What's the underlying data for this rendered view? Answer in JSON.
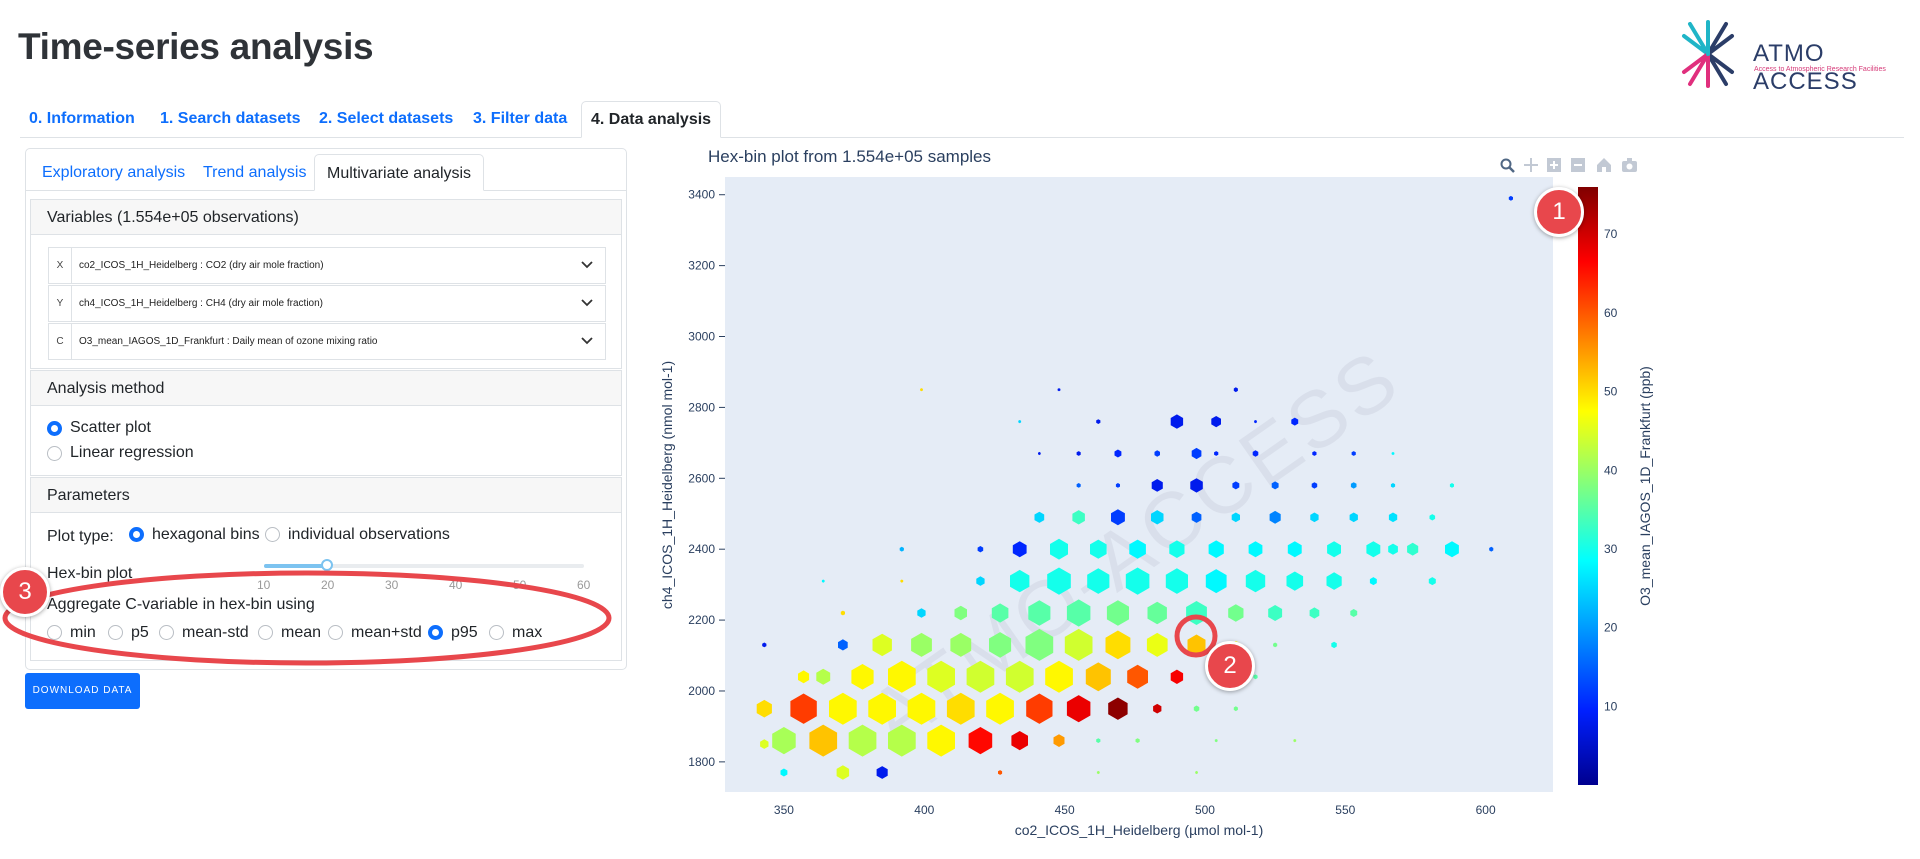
{
  "page": {
    "title": "Time-series analysis"
  },
  "logo": {
    "name": "ATMO ACCESS",
    "tagline": "Access to Atmospheric Research Facilities"
  },
  "main_tabs": [
    {
      "label": "0. Information"
    },
    {
      "label": "1. Search datasets"
    },
    {
      "label": "2. Select datasets"
    },
    {
      "label": "3. Filter data"
    },
    {
      "label": "4. Data analysis",
      "active": true
    }
  ],
  "sub_tabs": [
    {
      "label": "Exploratory analysis"
    },
    {
      "label": "Trend analysis"
    },
    {
      "label": "Multivariate analysis",
      "active": true
    }
  ],
  "variables": {
    "header": "Variables (1.554e+05 observations)",
    "x": {
      "tag": "X",
      "value": "co2_ICOS_1H_Heidelberg : CO2 (dry air mole fraction)"
    },
    "y": {
      "tag": "Y",
      "value": "ch4_ICOS_1H_Heidelberg : CH4 (dry air mole fraction)"
    },
    "c": {
      "tag": "C",
      "value": "O3_mean_IAGOS_1D_Frankfurt : Daily mean of ozone mixing ratio"
    }
  },
  "analysis_method": {
    "header": "Analysis method",
    "options": [
      "Scatter plot",
      "Linear regression"
    ],
    "selected": "Scatter plot"
  },
  "parameters": {
    "header": "Parameters",
    "plot_type_label": "Plot type:",
    "plot_type_options": [
      "hexagonal bins",
      "individual observations"
    ],
    "plot_type_selected": "hexagonal bins",
    "hexbin_label": "Hex-bin plot",
    "slider_ticks": [
      "10",
      "20",
      "30",
      "40",
      "50",
      "60"
    ],
    "slider_value": 20,
    "aggregate_label": "Aggregate C-variable in hex-bin using",
    "aggregate_options": [
      "min",
      "p5",
      "mean-std",
      "mean",
      "mean+std",
      "p95",
      "max"
    ],
    "aggregate_selected": "p95"
  },
  "download_button": "DOWNLOAD DATA",
  "annotations": [
    "1",
    "2",
    "3"
  ],
  "chart_data": {
    "type": "hexbin",
    "title": "Hex-bin plot from 1.554e+05 samples",
    "xlabel": "co2_ICOS_1H_Heidelberg (µmol mol-1)",
    "ylabel": "ch4_ICOS_1H_Heidelberg (nmol mol-1)",
    "colorbar_label": "O3_mean_IAGOS_1D_Frankfurt (ppb)",
    "xlim": [
      329,
      624
    ],
    "ylim": [
      1715,
      3450
    ],
    "x_ticks": [
      350,
      400,
      450,
      500,
      550,
      600
    ],
    "y_ticks": [
      1800,
      2000,
      2200,
      2400,
      2600,
      2800,
      3000,
      3200,
      3400
    ],
    "clim": [
      0,
      76
    ],
    "colorbar_ticks": [
      10,
      20,
      30,
      40,
      50,
      60,
      70
    ],
    "colorscale": "jet",
    "watermark": "ATMO-ACCESS",
    "grid": false,
    "background": "#e5ecf6",
    "hexbin_size": 20,
    "bins": [
      {
        "x": 343,
        "y": 1950,
        "c": 50,
        "s": 0.55
      },
      {
        "x": 343,
        "y": 1850,
        "c": 45,
        "s": 0.3
      },
      {
        "x": 350,
        "y": 1860,
        "c": 41,
        "s": 0.85
      },
      {
        "x": 357,
        "y": 1950,
        "c": 62,
        "s": 0.95
      },
      {
        "x": 350,
        "y": 1770,
        "c": 28,
        "s": 0.25
      },
      {
        "x": 357,
        "y": 2040,
        "c": 48,
        "s": 0.4
      },
      {
        "x": 364,
        "y": 1860,
        "c": 52,
        "s": 1.0
      },
      {
        "x": 371,
        "y": 1950,
        "c": 48,
        "s": 1.0
      },
      {
        "x": 371,
        "y": 1770,
        "c": 45,
        "s": 0.45
      },
      {
        "x": 364,
        "y": 2040,
        "c": 42,
        "s": 0.5
      },
      {
        "x": 378,
        "y": 1860,
        "c": 42,
        "s": 1.0
      },
      {
        "x": 385,
        "y": 1950,
        "c": 48,
        "s": 1.0
      },
      {
        "x": 371,
        "y": 2130,
        "c": 15,
        "s": 0.35
      },
      {
        "x": 385,
        "y": 1770,
        "c": 8,
        "s": 0.4
      },
      {
        "x": 378,
        "y": 2040,
        "c": 48,
        "s": 0.8
      },
      {
        "x": 392,
        "y": 1860,
        "c": 42,
        "s": 1.0
      },
      {
        "x": 399,
        "y": 1950,
        "c": 48,
        "s": 1.0
      },
      {
        "x": 385,
        "y": 2130,
        "c": 45,
        "s": 0.7
      },
      {
        "x": 392,
        "y": 2040,
        "c": 48,
        "s": 1.0
      },
      {
        "x": 406,
        "y": 1860,
        "c": 48,
        "s": 1.0
      },
      {
        "x": 413,
        "y": 1950,
        "c": 50,
        "s": 1.0
      },
      {
        "x": 406,
        "y": 2040,
        "c": 45,
        "s": 1.0
      },
      {
        "x": 399,
        "y": 2130,
        "c": 40,
        "s": 0.75
      },
      {
        "x": 399,
        "y": 2220,
        "c": 25,
        "s": 0.3
      },
      {
        "x": 420,
        "y": 1860,
        "c": 66,
        "s": 0.85
      },
      {
        "x": 427,
        "y": 1950,
        "c": 48,
        "s": 1.0
      },
      {
        "x": 420,
        "y": 2040,
        "c": 44,
        "s": 1.0
      },
      {
        "x": 413,
        "y": 2130,
        "c": 40,
        "s": 0.75
      },
      {
        "x": 413,
        "y": 2220,
        "c": 38,
        "s": 0.45
      },
      {
        "x": 427,
        "y": 1770,
        "c": 60,
        "s": 0.15
      },
      {
        "x": 434,
        "y": 1860,
        "c": 68,
        "s": 0.6
      },
      {
        "x": 441,
        "y": 1950,
        "c": 62,
        "s": 0.95
      },
      {
        "x": 434,
        "y": 2040,
        "c": 44,
        "s": 1.0
      },
      {
        "x": 427,
        "y": 2130,
        "c": 38,
        "s": 0.8
      },
      {
        "x": 420,
        "y": 2310,
        "c": 25,
        "s": 0.3
      },
      {
        "x": 427,
        "y": 2220,
        "c": 35,
        "s": 0.6
      },
      {
        "x": 420,
        "y": 2400,
        "c": 12,
        "s": 0.2
      },
      {
        "x": 448,
        "y": 1860,
        "c": 55,
        "s": 0.4
      },
      {
        "x": 455,
        "y": 1950,
        "c": 68,
        "s": 0.85
      },
      {
        "x": 448,
        "y": 2040,
        "c": 48,
        "s": 1.0
      },
      {
        "x": 441,
        "y": 2130,
        "c": 38,
        "s": 1.0
      },
      {
        "x": 441,
        "y": 2220,
        "c": 35,
        "s": 0.8
      },
      {
        "x": 434,
        "y": 2310,
        "c": 30,
        "s": 0.7
      },
      {
        "x": 434,
        "y": 2400,
        "c": 10,
        "s": 0.5
      },
      {
        "x": 455,
        "y": 2130,
        "c": 44,
        "s": 1.0
      },
      {
        "x": 462,
        "y": 2040,
        "c": 52,
        "s": 0.9
      },
      {
        "x": 469,
        "y": 1950,
        "c": 75,
        "s": 0.7
      },
      {
        "x": 462,
        "y": 1860,
        "c": 35,
        "s": 0.15
      },
      {
        "x": 455,
        "y": 2220,
        "c": 35,
        "s": 0.85
      },
      {
        "x": 448,
        "y": 2310,
        "c": 30,
        "s": 0.85
      },
      {
        "x": 448,
        "y": 2400,
        "c": 30,
        "s": 0.65
      },
      {
        "x": 441,
        "y": 2490,
        "c": 25,
        "s": 0.35
      },
      {
        "x": 469,
        "y": 2130,
        "c": 50,
        "s": 0.9
      },
      {
        "x": 476,
        "y": 2040,
        "c": 60,
        "s": 0.75
      },
      {
        "x": 483,
        "y": 1950,
        "c": 70,
        "s": 0.3
      },
      {
        "x": 476,
        "y": 1860,
        "c": 38,
        "s": 0.15
      },
      {
        "x": 469,
        "y": 2220,
        "c": 37,
        "s": 0.8
      },
      {
        "x": 462,
        "y": 2310,
        "c": 30,
        "s": 0.8
      },
      {
        "x": 462,
        "y": 2400,
        "c": 30,
        "s": 0.6
      },
      {
        "x": 455,
        "y": 2490,
        "c": 33,
        "s": 0.45
      },
      {
        "x": 455,
        "y": 2580,
        "c": 15,
        "s": 0.15
      },
      {
        "x": 483,
        "y": 2130,
        "c": 46,
        "s": 0.75
      },
      {
        "x": 490,
        "y": 2040,
        "c": 67,
        "s": 0.45
      },
      {
        "x": 497,
        "y": 1950,
        "c": 37,
        "s": 0.2
      },
      {
        "x": 483,
        "y": 2220,
        "c": 36,
        "s": 0.7
      },
      {
        "x": 476,
        "y": 2310,
        "c": 30,
        "s": 0.85
      },
      {
        "x": 476,
        "y": 2400,
        "c": 28,
        "s": 0.6
      },
      {
        "x": 469,
        "y": 2490,
        "c": 12,
        "s": 0.5
      },
      {
        "x": 469,
        "y": 2580,
        "c": 12,
        "s": 0.15
      },
      {
        "x": 497,
        "y": 2130,
        "c": 52,
        "s": 0.65
      },
      {
        "x": 504,
        "y": 2040,
        "c": 42,
        "s": 0.15
      },
      {
        "x": 511,
        "y": 1950,
        "c": 37,
        "s": 0.15
      },
      {
        "x": 497,
        "y": 2220,
        "c": 33,
        "s": 0.75
      },
      {
        "x": 490,
        "y": 2310,
        "c": 30,
        "s": 0.8
      },
      {
        "x": 490,
        "y": 2400,
        "c": 30,
        "s": 0.55
      },
      {
        "x": 483,
        "y": 2490,
        "c": 25,
        "s": 0.45
      },
      {
        "x": 483,
        "y": 2580,
        "c": 8,
        "s": 0.4
      },
      {
        "x": 490,
        "y": 2760,
        "c": 8,
        "s": 0.45
      },
      {
        "x": 511,
        "y": 2130,
        "c": 47,
        "s": 0.25
      },
      {
        "x": 518,
        "y": 2040,
        "c": 35,
        "s": 0.15
      },
      {
        "x": 511,
        "y": 2220,
        "c": 37,
        "s": 0.55
      },
      {
        "x": 504,
        "y": 2310,
        "c": 28,
        "s": 0.75
      },
      {
        "x": 504,
        "y": 2400,
        "c": 28,
        "s": 0.55
      },
      {
        "x": 497,
        "y": 2490,
        "c": 15,
        "s": 0.35
      },
      {
        "x": 497,
        "y": 2580,
        "c": 8,
        "s": 0.45
      },
      {
        "x": 504,
        "y": 2760,
        "c": 8,
        "s": 0.35
      },
      {
        "x": 525,
        "y": 2130,
        "c": 37,
        "s": 0.15
      },
      {
        "x": 525,
        "y": 2220,
        "c": 33,
        "s": 0.5
      },
      {
        "x": 518,
        "y": 2310,
        "c": 30,
        "s": 0.7
      },
      {
        "x": 518,
        "y": 2400,
        "c": 28,
        "s": 0.5
      },
      {
        "x": 511,
        "y": 2490,
        "c": 25,
        "s": 0.3
      },
      {
        "x": 511,
        "y": 2580,
        "c": 12,
        "s": 0.25
      },
      {
        "x": 518,
        "y": 2670,
        "c": 10,
        "s": 0.2
      },
      {
        "x": 511,
        "y": 2850,
        "c": 8,
        "s": 0.15
      },
      {
        "x": 539,
        "y": 2220,
        "c": 33,
        "s": 0.35
      },
      {
        "x": 532,
        "y": 2310,
        "c": 30,
        "s": 0.6
      },
      {
        "x": 532,
        "y": 2400,
        "c": 28,
        "s": 0.5
      },
      {
        "x": 525,
        "y": 2490,
        "c": 18,
        "s": 0.4
      },
      {
        "x": 525,
        "y": 2580,
        "c": 15,
        "s": 0.25
      },
      {
        "x": 532,
        "y": 2760,
        "c": 10,
        "s": 0.25
      },
      {
        "x": 546,
        "y": 2310,
        "c": 30,
        "s": 0.55
      },
      {
        "x": 546,
        "y": 2400,
        "c": 30,
        "s": 0.5
      },
      {
        "x": 539,
        "y": 2490,
        "c": 25,
        "s": 0.3
      },
      {
        "x": 539,
        "y": 2580,
        "c": 12,
        "s": 0.2
      },
      {
        "x": 560,
        "y": 2400,
        "c": 30,
        "s": 0.5
      },
      {
        "x": 553,
        "y": 2490,
        "c": 25,
        "s": 0.3
      },
      {
        "x": 560,
        "y": 2310,
        "c": 28,
        "s": 0.25
      },
      {
        "x": 553,
        "y": 2580,
        "c": 20,
        "s": 0.2
      },
      {
        "x": 567,
        "y": 2490,
        "c": 26,
        "s": 0.3
      },
      {
        "x": 567,
        "y": 2580,
        "c": 25,
        "s": 0.15
      },
      {
        "x": 574,
        "y": 2400,
        "c": 32,
        "s": 0.4
      },
      {
        "x": 581,
        "y": 2490,
        "c": 30,
        "s": 0.2
      },
      {
        "x": 588,
        "y": 2400,
        "c": 28,
        "s": 0.5
      },
      {
        "x": 602,
        "y": 2400,
        "c": 15,
        "s": 0.15
      },
      {
        "x": 567,
        "y": 2400,
        "c": 30,
        "s": 0.35
      },
      {
        "x": 581,
        "y": 2310,
        "c": 30,
        "s": 0.25
      },
      {
        "x": 588,
        "y": 2580,
        "c": 30,
        "s": 0.15
      },
      {
        "x": 546,
        "y": 2130,
        "c": 30,
        "s": 0.2
      },
      {
        "x": 553,
        "y": 2220,
        "c": 35,
        "s": 0.25
      },
      {
        "x": 504,
        "y": 1860,
        "c": 38,
        "s": 0.1
      },
      {
        "x": 532,
        "y": 1860,
        "c": 40,
        "s": 0.1
      },
      {
        "x": 399,
        "y": 2850,
        "c": 50,
        "s": 0.1
      },
      {
        "x": 434,
        "y": 2760,
        "c": 25,
        "s": 0.1
      },
      {
        "x": 448,
        "y": 2850,
        "c": 8,
        "s": 0.1
      },
      {
        "x": 392,
        "y": 2310,
        "c": 50,
        "s": 0.1
      },
      {
        "x": 343,
        "y": 2130,
        "c": 8,
        "s": 0.15
      },
      {
        "x": 364,
        "y": 2310,
        "c": 28,
        "s": 0.1
      },
      {
        "x": 392,
        "y": 2400,
        "c": 22,
        "s": 0.15
      },
      {
        "x": 371,
        "y": 2220,
        "c": 50,
        "s": 0.15
      },
      {
        "x": 441,
        "y": 2670,
        "c": 8,
        "s": 0.1
      },
      {
        "x": 455,
        "y": 2670,
        "c": 8,
        "s": 0.15
      },
      {
        "x": 469,
        "y": 2670,
        "c": 10,
        "s": 0.25
      },
      {
        "x": 483,
        "y": 2670,
        "c": 12,
        "s": 0.2
      },
      {
        "x": 497,
        "y": 2670,
        "c": 12,
        "s": 0.35
      },
      {
        "x": 539,
        "y": 2670,
        "c": 10,
        "s": 0.15
      },
      {
        "x": 553,
        "y": 2670,
        "c": 12,
        "s": 0.15
      },
      {
        "x": 567,
        "y": 2670,
        "c": 28,
        "s": 0.1
      },
      {
        "x": 609,
        "y": 3390,
        "c": 12,
        "s": 0.15
      },
      {
        "x": 462,
        "y": 2760,
        "c": 8,
        "s": 0.15
      },
      {
        "x": 518,
        "y": 2760,
        "c": 10,
        "s": 0.1
      },
      {
        "x": 504,
        "y": 2670,
        "c": 10,
        "s": 0.15
      },
      {
        "x": 462,
        "y": 1770,
        "c": 40,
        "s": 0.1
      },
      {
        "x": 497,
        "y": 1770,
        "c": 40,
        "s": 0.1
      }
    ]
  }
}
